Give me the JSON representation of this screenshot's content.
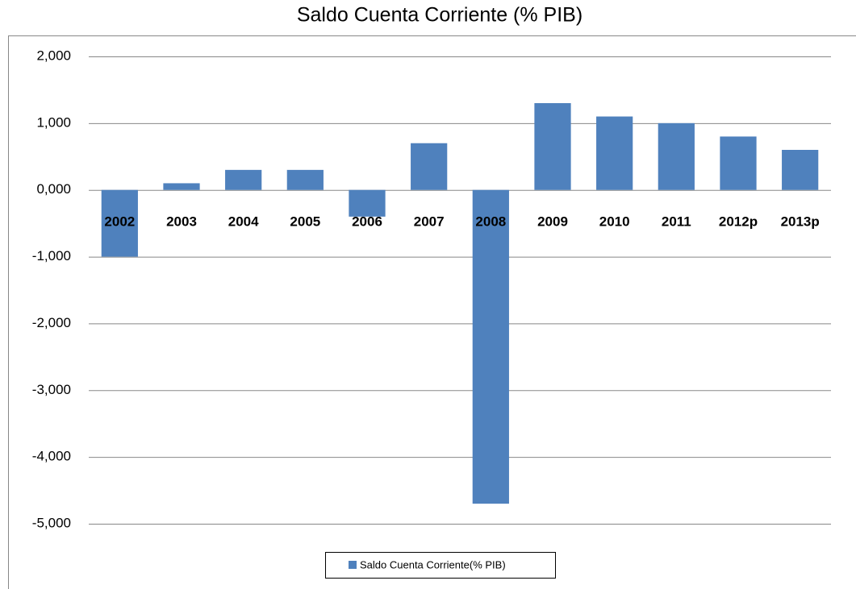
{
  "chart_data": {
    "type": "bar",
    "title": "Saldo Cuenta Corriente (% PIB)",
    "categories": [
      "2002",
      "2003",
      "2004",
      "2005",
      "2006",
      "2007",
      "2008",
      "2009",
      "2010",
      "2011",
      "2012p",
      "2013p"
    ],
    "series": [
      {
        "name": "Saldo Cuenta Corriente(% PIB)",
        "color": "#4f81bd",
        "values": [
          -1.0,
          0.1,
          0.3,
          0.3,
          -0.4,
          0.7,
          -4.7,
          1.3,
          1.1,
          1.0,
          0.8,
          0.6
        ]
      }
    ],
    "ylim": [
      -5,
      2
    ],
    "yticks": [
      {
        "value": 2,
        "label": "2,000"
      },
      {
        "value": 1,
        "label": "1,000"
      },
      {
        "value": 0,
        "label": "0,000"
      },
      {
        "value": -1,
        "label": "-1,000"
      },
      {
        "value": -2,
        "label": "-2,000"
      },
      {
        "value": -3,
        "label": "-3,000"
      },
      {
        "value": -4,
        "label": "-4,000"
      },
      {
        "value": -5,
        "label": "-5,000"
      }
    ],
    "grid": true,
    "legend": "bottom"
  }
}
